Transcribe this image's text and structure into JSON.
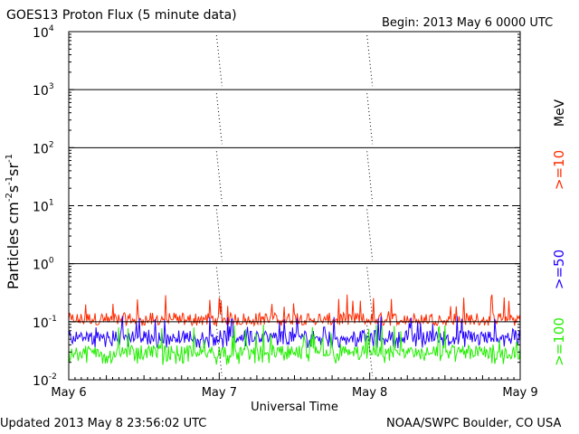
{
  "header": {
    "title": "GOES13 Proton Flux (5 minute data)",
    "begin": "Begin: 2013 May 6 0000 UTC"
  },
  "footer": {
    "updated": "Updated 2013 May  8 23:56:02 UTC",
    "credit": "NOAA/SWPC Boulder, CO USA"
  },
  "chart_data": {
    "type": "line",
    "title": "GOES13 Proton Flux (5 minute data)",
    "xlabel": "Universal Time",
    "ylabel": "Particles cm⁻²s⁻¹sr⁻¹",
    "ylabel_parts": [
      "Particles cm",
      "-2",
      "s",
      "-1",
      "sr",
      "-1"
    ],
    "yscale": "log",
    "ylim": [
      0.01,
      10000
    ],
    "y_ticks": [
      {
        "value": 10000,
        "base": "10",
        "exp": "4"
      },
      {
        "value": 1000,
        "base": "10",
        "exp": "3"
      },
      {
        "value": 100,
        "base": "10",
        "exp": "2"
      },
      {
        "value": 10,
        "base": "10",
        "exp": "1"
      },
      {
        "value": 1,
        "base": "10",
        "exp": "0"
      },
      {
        "value": 0.1,
        "base": "10",
        "exp": "-1"
      },
      {
        "value": 0.01,
        "base": "10",
        "exp": "-2"
      }
    ],
    "threshold_lines": [
      {
        "value": 1000,
        "style": "solid"
      },
      {
        "value": 100,
        "style": "solid"
      },
      {
        "value": 10,
        "style": "dashed"
      },
      {
        "value": 1,
        "style": "solid"
      },
      {
        "value": 0.1,
        "style": "solid"
      }
    ],
    "x_categories": [
      "May 6",
      "May 7",
      "May 8",
      "May 9"
    ],
    "xlim_days": [
      0,
      3
    ],
    "energy_unit": "MeV",
    "series": [
      {
        "name": ">=10",
        "color": "#ff2a00",
        "typical": 0.11,
        "low": 0.085,
        "high": 0.3
      },
      {
        "name": ">=50",
        "color": "#2200ff",
        "typical": 0.055,
        "low": 0.035,
        "high": 0.13
      },
      {
        "name": ">=100",
        "color": "#22ee00",
        "typical": 0.03,
        "low": 0.018,
        "high": 0.09
      }
    ]
  }
}
